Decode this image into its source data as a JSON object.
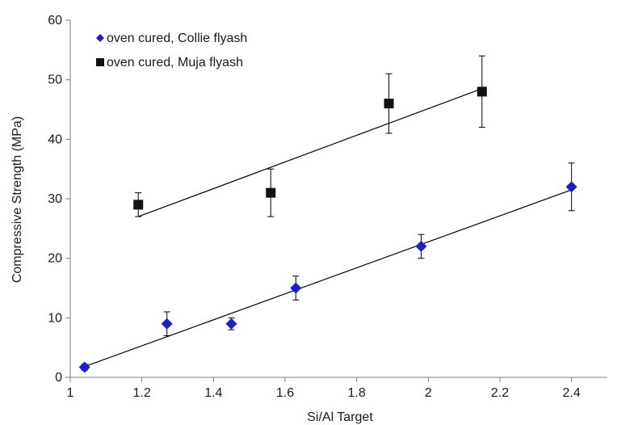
{
  "chart_data": {
    "type": "scatter",
    "xlabel": "Si/Al Target",
    "ylabel": "Compressive Strength (MPa)",
    "xlim": [
      1,
      2.5
    ],
    "ylim": [
      0,
      60
    ],
    "x_ticks": [
      1,
      1.2,
      1.4,
      1.6,
      1.8,
      2,
      2.2,
      2.4
    ],
    "x_tick_labels": [
      "1",
      "1.2",
      "1.4",
      "1.6",
      "1.8",
      "2",
      "2.2",
      "2.4"
    ],
    "y_ticks": [
      0,
      10,
      20,
      30,
      40,
      50,
      60
    ],
    "y_tick_labels": [
      "0",
      "10",
      "20",
      "30",
      "40",
      "50",
      "60"
    ],
    "grid": false,
    "legend_position": "top-left",
    "series": [
      {
        "name": "oven cured, Collie flyash",
        "marker": "diamond",
        "color": "#1f1fcc",
        "points": [
          {
            "x": 1.04,
            "y": 1.7,
            "err": 0.5
          },
          {
            "x": 1.27,
            "y": 9,
            "err": 2
          },
          {
            "x": 1.45,
            "y": 9,
            "err": 1
          },
          {
            "x": 1.63,
            "y": 15,
            "err": 2
          },
          {
            "x": 1.98,
            "y": 22,
            "err": 2
          },
          {
            "x": 2.4,
            "y": 32,
            "err": 4
          }
        ],
        "trendline": {
          "x": [
            1.04,
            2.4
          ],
          "y": [
            1.8,
            31.5
          ]
        }
      },
      {
        "name": "oven cured, Muja flyash",
        "marker": "square",
        "color": "#111111",
        "points": [
          {
            "x": 1.19,
            "y": 29,
            "err": 2
          },
          {
            "x": 1.56,
            "y": 31,
            "err": 4
          },
          {
            "x": 1.89,
            "y": 46,
            "err": 5
          },
          {
            "x": 2.15,
            "y": 48,
            "err": 6
          }
        ],
        "trendline": {
          "x": [
            1.19,
            2.15
          ],
          "y": [
            27,
            48.5
          ]
        }
      }
    ]
  }
}
